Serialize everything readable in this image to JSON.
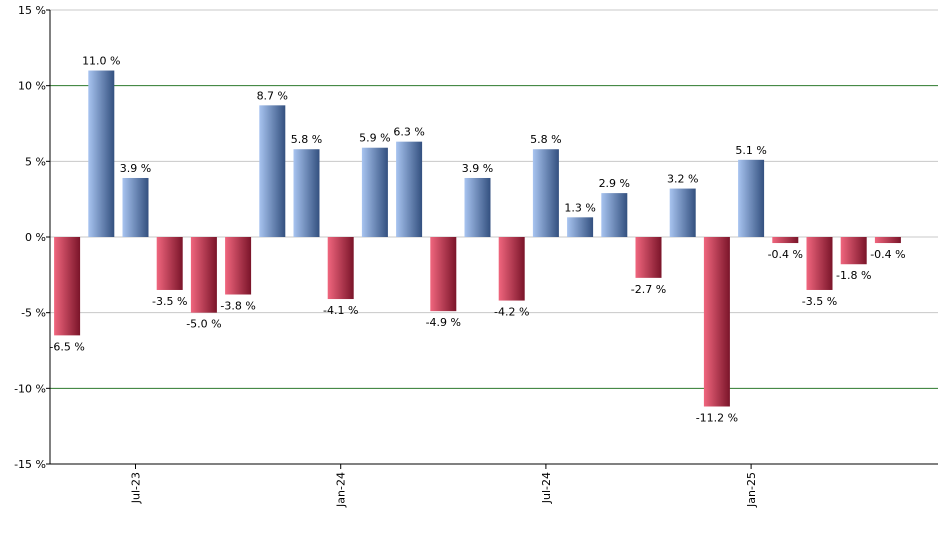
{
  "chart_data": {
    "type": "bar",
    "title": "",
    "xlabel": "",
    "ylabel": "",
    "ylim": [
      -15,
      15
    ],
    "y_ticks": [
      15,
      10,
      5,
      0,
      -5,
      -10,
      -15
    ],
    "y_tick_labels": [
      "15 %",
      "10 %",
      "5 %",
      "0 %",
      "-5 %",
      "-10 %",
      "-15 %"
    ],
    "x_tick_labels": [
      {
        "index": 2,
        "label": "Jul-23"
      },
      {
        "index": 8,
        "label": "Jan-24"
      },
      {
        "index": 14,
        "label": "Jul-24"
      },
      {
        "index": 20,
        "label": "Jan-25"
      }
    ],
    "values": [
      -6.5,
      11.0,
      3.9,
      -3.5,
      -5.0,
      -3.8,
      8.7,
      5.8,
      -4.1,
      5.9,
      6.3,
      -4.9,
      3.9,
      -4.2,
      5.8,
      1.3,
      2.9,
      -2.7,
      3.2,
      -11.2,
      5.1,
      -0.4,
      -3.5,
      -1.8,
      -0.4
    ],
    "value_labels": [
      "-6.5 %",
      "11.0 %",
      "3.9 %",
      "-3.5 %",
      "-5.0 %",
      "-3.8 %",
      "8.7 %",
      "5.8 %",
      "-4.1 %",
      "5.9 %",
      "6.3 %",
      "-4.9 %",
      "3.9 %",
      "-4.2 %",
      "5.8 %",
      "1.3 %",
      "2.9 %",
      "-2.7 %",
      "3.2 %",
      "-11.2 %",
      "5.1 %",
      "-0.4 %",
      "-3.5 %",
      "-1.8 %",
      "-0.4 %"
    ],
    "grid": true,
    "major_grid_values": [
      10,
      -10
    ],
    "colors": {
      "positive_light": "#a8c4f0",
      "positive_dark": "#33507f",
      "negative_light": "#f0667e",
      "negative_dark": "#7a1429",
      "grid": "#c8c8c8",
      "major_grid": "#2d7a2d",
      "axis": "#000000"
    }
  }
}
